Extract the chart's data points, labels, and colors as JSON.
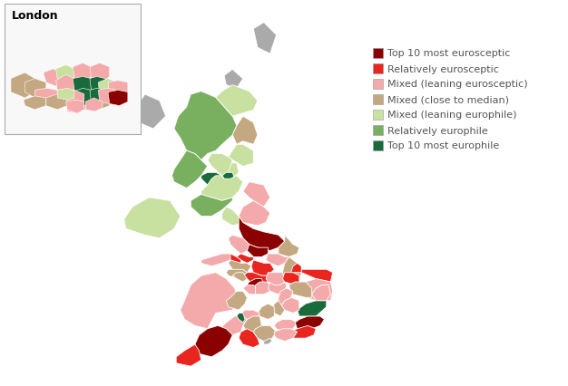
{
  "background_color": "#ffffff",
  "legend_entries": [
    {
      "label": "Top 10 most eurosceptic",
      "color": "#8B0000"
    },
    {
      "label": "Relatively eurosceptic",
      "color": "#E8251F"
    },
    {
      "label": "Mixed (leaning eurosceptic)",
      "color": "#F4AAAA"
    },
    {
      "label": "Mixed (close to median)",
      "color": "#C4A882"
    },
    {
      "label": "Mixed (leaning europhile)",
      "color": "#C8E0A0"
    },
    {
      "label": "Relatively europhile",
      "color": "#78B060"
    },
    {
      "label": "Top 10 most europhile",
      "color": "#1A6B3C"
    }
  ],
  "london_label": "London",
  "legend_fontsize": 8,
  "london_fontsize": 9,
  "gray": "#AAAAAA",
  "white": "#ffffff",
  "edge_color": "#ffffff",
  "edge_lw": 0.6
}
